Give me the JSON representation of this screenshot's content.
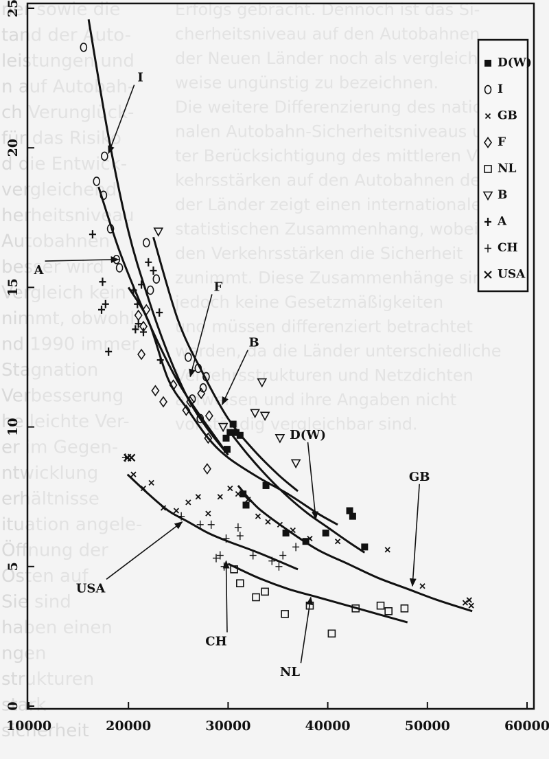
{
  "chart_data": {
    "type": "scatter",
    "title": "",
    "xlabel": "",
    "ylabel": "",
    "xlim": [
      10000,
      60000
    ],
    "ylim": [
      0,
      25
    ],
    "x_ticks": [
      "10000",
      "20000",
      "30000",
      "40000",
      "50000",
      "60000"
    ],
    "y_ticks": [
      "0",
      "5",
      "10",
      "15",
      "20",
      "25"
    ],
    "grid": false,
    "legend_position": "top-right",
    "series": [
      {
        "name": "D(W)",
        "marker": "filled-square",
        "points": [
          [
            29800,
            9.6
          ],
          [
            30200,
            9.8
          ],
          [
            30500,
            10.1
          ],
          [
            30800,
            9.8
          ],
          [
            31200,
            9.7
          ],
          [
            29900,
            9.2
          ],
          [
            31500,
            7.6
          ],
          [
            31800,
            7.2
          ],
          [
            33800,
            7.9
          ],
          [
            35800,
            6.2
          ],
          [
            37800,
            5.9
          ],
          [
            39800,
            6.2
          ],
          [
            42200,
            7.0
          ],
          [
            42500,
            6.8
          ],
          [
            43700,
            5.7
          ]
        ]
      },
      {
        "name": "I",
        "marker": "circle",
        "points": [
          [
            15500,
            23.6
          ],
          [
            16800,
            18.8
          ],
          [
            17600,
            19.7
          ],
          [
            17500,
            18.3
          ],
          [
            18200,
            17.1
          ],
          [
            18800,
            16.0
          ],
          [
            19100,
            15.7
          ],
          [
            21800,
            16.6
          ],
          [
            22200,
            14.9
          ],
          [
            22800,
            15.3
          ],
          [
            26000,
            12.5
          ],
          [
            27000,
            12.1
          ],
          [
            27500,
            11.4
          ],
          [
            27800,
            11.8
          ],
          [
            26400,
            11.0
          ],
          [
            27200,
            10.3
          ]
        ]
      },
      {
        "name": "GB",
        "marker": "small-x",
        "points": [
          [
            20500,
            8.3
          ],
          [
            21500,
            7.8
          ],
          [
            22300,
            8.0
          ],
          [
            23500,
            7.1
          ],
          [
            24800,
            7.0
          ],
          [
            26000,
            7.3
          ],
          [
            27000,
            7.5
          ],
          [
            28000,
            6.9
          ],
          [
            29200,
            7.5
          ],
          [
            30200,
            7.8
          ],
          [
            31000,
            7.6
          ],
          [
            32000,
            7.4
          ],
          [
            33000,
            6.8
          ],
          [
            34000,
            6.6
          ],
          [
            35200,
            6.5
          ],
          [
            36500,
            6.3
          ],
          [
            38200,
            6.0
          ],
          [
            41000,
            5.9
          ],
          [
            46000,
            5.6
          ],
          [
            49500,
            4.3
          ],
          [
            53800,
            3.7
          ],
          [
            54200,
            3.8
          ],
          [
            54400,
            3.6
          ]
        ]
      },
      {
        "name": "F",
        "marker": "diamond",
        "points": [
          [
            21000,
            14.0
          ],
          [
            21500,
            13.6
          ],
          [
            21800,
            14.2
          ],
          [
            21300,
            12.6
          ],
          [
            22700,
            11.3
          ],
          [
            23500,
            10.9
          ],
          [
            24500,
            11.5
          ],
          [
            25800,
            10.6
          ],
          [
            26200,
            10.9
          ],
          [
            27300,
            11.2
          ],
          [
            28100,
            10.4
          ],
          [
            28000,
            9.6
          ],
          [
            27900,
            8.5
          ]
        ]
      },
      {
        "name": "NL",
        "marker": "square",
        "points": [
          [
            30600,
            4.9
          ],
          [
            31200,
            4.4
          ],
          [
            32800,
            3.9
          ],
          [
            33700,
            4.1
          ],
          [
            35700,
            3.3
          ],
          [
            38200,
            3.6
          ],
          [
            40400,
            2.6
          ],
          [
            42800,
            3.5
          ],
          [
            45300,
            3.6
          ],
          [
            46100,
            3.4
          ],
          [
            47700,
            3.5
          ]
        ]
      },
      {
        "name": "B",
        "marker": "triangle-down",
        "points": [
          [
            23000,
            17.0
          ],
          [
            29500,
            10.0
          ],
          [
            33400,
            11.6
          ],
          [
            32700,
            10.5
          ],
          [
            33700,
            10.4
          ],
          [
            35200,
            9.6
          ],
          [
            36800,
            8.7
          ]
        ]
      },
      {
        "name": "A",
        "marker": "plus",
        "points": [
          [
            16400,
            16.9
          ],
          [
            17400,
            15.2
          ],
          [
            17300,
            14.2
          ],
          [
            17700,
            14.4
          ],
          [
            18000,
            12.7
          ],
          [
            20500,
            14.9
          ],
          [
            20900,
            14.4
          ],
          [
            21300,
            15.1
          ],
          [
            22000,
            15.9
          ],
          [
            22500,
            15.6
          ],
          [
            20700,
            13.5
          ],
          [
            21000,
            13.7
          ],
          [
            21500,
            13.4
          ],
          [
            23100,
            14.1
          ],
          [
            23200,
            12.4
          ]
        ]
      },
      {
        "name": "CH",
        "marker": "plus-thin",
        "points": [
          [
            19700,
            8.9
          ],
          [
            25300,
            6.8
          ],
          [
            27200,
            6.5
          ],
          [
            28300,
            6.5
          ],
          [
            29800,
            6.0
          ],
          [
            31200,
            6.1
          ],
          [
            28800,
            5.3
          ],
          [
            29200,
            5.4
          ],
          [
            29600,
            5.0
          ],
          [
            31000,
            6.4
          ],
          [
            32500,
            5.4
          ],
          [
            34400,
            5.2
          ],
          [
            35100,
            5.0
          ],
          [
            35500,
            5.4
          ],
          [
            36800,
            5.7
          ]
        ]
      },
      {
        "name": "USA",
        "marker": "x",
        "points": [
          [
            19900,
            8.9
          ],
          [
            20300,
            8.9
          ]
        ]
      }
    ],
    "fitted_curves": [
      {
        "label": "I",
        "points": [
          [
            16000,
            24.6
          ],
          [
            18000,
            20.4
          ],
          [
            20000,
            17.0
          ],
          [
            22000,
            14.6
          ],
          [
            24000,
            12.6
          ],
          [
            26000,
            11.0
          ],
          [
            28000,
            9.9
          ],
          [
            30000,
            9.0
          ]
        ]
      },
      {
        "label": "A",
        "points": [
          [
            17000,
            18.6
          ],
          [
            19000,
            16.4
          ],
          [
            21000,
            14.6
          ],
          [
            23000,
            13.0
          ],
          [
            25000,
            11.6
          ],
          [
            27000,
            10.5
          ],
          [
            30000,
            9.0
          ]
        ]
      },
      {
        "label": "F",
        "points": [
          [
            20000,
            15.0
          ],
          [
            22000,
            13.8
          ],
          [
            24000,
            11.7
          ],
          [
            26000,
            10.6
          ],
          [
            28000,
            9.6
          ],
          [
            30000,
            8.9
          ],
          [
            33000,
            8.2
          ],
          [
            36000,
            7.6
          ],
          [
            39000,
            6.9
          ],
          [
            41000,
            6.5
          ]
        ]
      },
      {
        "label": "B",
        "points": [
          [
            22500,
            16.8
          ],
          [
            25000,
            13.8
          ],
          [
            27500,
            11.9
          ],
          [
            30000,
            10.3
          ],
          [
            32500,
            9.2
          ],
          [
            35000,
            8.3
          ],
          [
            37000,
            7.7
          ]
        ]
      },
      {
        "label": "D(W)",
        "points": [
          [
            30000,
            9.9
          ],
          [
            32000,
            9.0
          ],
          [
            34000,
            8.2
          ],
          [
            36000,
            7.5
          ],
          [
            38000,
            6.9
          ],
          [
            40000,
            6.4
          ],
          [
            42000,
            5.9
          ],
          [
            43700,
            5.5
          ]
        ]
      },
      {
        "label": "GB",
        "points": [
          [
            31000,
            7.9
          ],
          [
            33000,
            7.1
          ],
          [
            36000,
            6.3
          ],
          [
            39000,
            5.6
          ],
          [
            42000,
            5.1
          ],
          [
            45000,
            4.6
          ],
          [
            48000,
            4.2
          ],
          [
            51000,
            3.8
          ],
          [
            54500,
            3.4
          ]
        ]
      },
      {
        "label": "USA",
        "points": [
          [
            19900,
            8.3
          ],
          [
            22000,
            7.6
          ],
          [
            24000,
            7.0
          ],
          [
            26000,
            6.6
          ],
          [
            28000,
            6.2
          ],
          [
            30000,
            5.9
          ],
          [
            33000,
            5.5
          ],
          [
            37000,
            4.9
          ]
        ]
      },
      {
        "label": "NL",
        "points": [
          [
            30000,
            5.1
          ],
          [
            33000,
            4.6
          ],
          [
            36000,
            4.2
          ],
          [
            39000,
            3.9
          ],
          [
            42000,
            3.6
          ],
          [
            45000,
            3.3
          ],
          [
            48000,
            3.0
          ]
        ]
      }
    ],
    "callouts": [
      {
        "label": "I",
        "text_at": [
          21200,
          22.5
        ],
        "arrow_to": [
          18000,
          19.8
        ]
      },
      {
        "label": "A",
        "text_at": [
          11000,
          15.6
        ],
        "arrow_to": [
          19000,
          16.0
        ]
      },
      {
        "label": "F",
        "text_at": [
          29000,
          15.0
        ],
        "arrow_to": [
          26200,
          11.8
        ]
      },
      {
        "label": "B",
        "text_at": [
          32600,
          13.0
        ],
        "arrow_to": [
          29400,
          10.8
        ]
      },
      {
        "label": "D(W)",
        "text_at": [
          38000,
          9.7
        ],
        "arrow_to": [
          38800,
          6.7
        ]
      },
      {
        "label": "GB",
        "text_at": [
          49200,
          8.2
        ],
        "arrow_to": [
          48500,
          4.3
        ]
      },
      {
        "label": "USA",
        "text_at": [
          16200,
          4.2
        ],
        "arrow_to": [
          25400,
          6.6
        ]
      },
      {
        "label": "CH",
        "text_at": [
          28800,
          2.3
        ],
        "arrow_to": [
          29800,
          5.2
        ]
      },
      {
        "label": "NL",
        "text_at": [
          36200,
          1.2
        ],
        "arrow_to": [
          38300,
          3.9
        ]
      }
    ]
  },
  "background_text": {
    "left_column": [
      "ner sowie die",
      "tand der Auto-",
      "leistungen und",
      "n auf Autobah-",
      "ch Verunglück-",
      "für das Risiko",
      "d die Entwick-",
      "vergleichend",
      "herheitsniveau",
      "Autobahnen",
      "besser wird",
      "Vergleich kein",
      "nimmt, obwohl",
      "nd 1990 immer",
      "Stagnation",
      "Verbesserung",
      "he leichte Ver-",
      "er im Gegen-",
      "ntwicklung",
      "erhältnisse",
      "ituation angele-",
      "Öffnung der",
      "Osten auf",
      "Sie sind",
      "haben einen",
      "ngen",
      "strukturen",
      "stark",
      "sicherheit"
    ],
    "right_column": [
      "Erfolgs gebracht. Dennoch ist das Si-",
      "cherheitsniveau auf den Autobahnen",
      "der Neuen Länder noch als vergleichs-",
      "weise ungünstig zu bezeichnen.",
      "Die weitere Differenzierung des natio-",
      "nalen Autobahn-Sicherheitsniveaus un-",
      "ter Berücksichtigung des mittleren Ver-",
      "kehrsstärken auf den Autobahnen der",
      "der Länder zeigt einen internationalen",
      "statistischen Zusammenhang, wobei",
      "den Verkehrsstärken die Sicherheit",
      "zunimmt. Diese Zusammenhänge sind",
      "jedoch keine Gesetzmäßigkeiten",
      "und müssen differenziert betrachtet",
      "werden, da die Länder unterschiedliche",
      "Verkehrsstrukturen und Netzdichten",
      "aufweisen und ihre Angaben nicht",
      "vollständig vergleichbar sind."
    ]
  }
}
